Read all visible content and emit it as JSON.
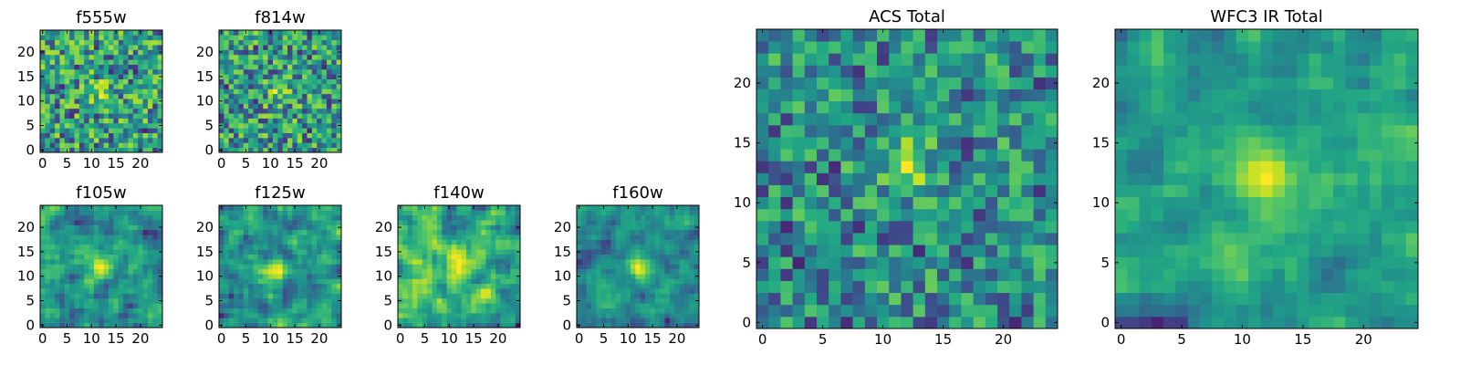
{
  "chart_data": [
    {
      "type": "heatmap",
      "title": "f555w",
      "grid": false,
      "xlim": [
        -0.5,
        24.5
      ],
      "ylim": [
        -0.5,
        24.5
      ],
      "xticks": [
        0,
        5,
        10,
        15,
        20
      ],
      "yticks": [
        0,
        5,
        10,
        15,
        20
      ],
      "colormap": "viridis",
      "seed": 11,
      "smooth": 0,
      "peak": [
        12,
        12
      ],
      "peak_strength": 0.35
    },
    {
      "type": "heatmap",
      "title": "f814w",
      "grid": false,
      "xlim": [
        -0.5,
        24.5
      ],
      "ylim": [
        -0.5,
        24.5
      ],
      "xticks": [
        0,
        5,
        10,
        15,
        20
      ],
      "yticks": [
        0,
        5,
        10,
        15,
        20
      ],
      "colormap": "viridis",
      "seed": 23,
      "smooth": 0,
      "peak": [
        12,
        12
      ],
      "peak_strength": 0.4
    },
    {
      "type": "heatmap",
      "title": "f105w",
      "grid": false,
      "xlim": [
        -0.5,
        24.5
      ],
      "ylim": [
        -0.5,
        24.5
      ],
      "xticks": [
        0,
        5,
        10,
        15,
        20
      ],
      "yticks": [
        0,
        5,
        10,
        15,
        20
      ],
      "colormap": "viridis",
      "seed": 37,
      "smooth": 1,
      "peak": [
        12,
        12
      ],
      "peak_strength": 0.45
    },
    {
      "type": "heatmap",
      "title": "f125w",
      "grid": false,
      "xlim": [
        -0.5,
        24.5
      ],
      "ylim": [
        -0.5,
        24.5
      ],
      "xticks": [
        0,
        5,
        10,
        15,
        20
      ],
      "yticks": [
        0,
        5,
        10,
        15,
        20
      ],
      "colormap": "viridis",
      "seed": 41,
      "smooth": 1,
      "peak": [
        11,
        11
      ],
      "peak_strength": 0.4
    },
    {
      "type": "heatmap",
      "title": "f140w",
      "grid": false,
      "xlim": [
        -0.5,
        24.5
      ],
      "ylim": [
        -0.5,
        24.5
      ],
      "xticks": [
        0,
        5,
        10,
        15,
        20
      ],
      "yticks": [
        0,
        5,
        10,
        15,
        20
      ],
      "colormap": "viridis",
      "seed": 53,
      "smooth": 1,
      "peak": [
        12,
        12
      ],
      "peak_strength": 0.35
    },
    {
      "type": "heatmap",
      "title": "f160w",
      "grid": false,
      "xlim": [
        -0.5,
        24.5
      ],
      "ylim": [
        -0.5,
        24.5
      ],
      "xticks": [
        0,
        5,
        10,
        15,
        20
      ],
      "yticks": [
        0,
        5,
        10,
        15,
        20
      ],
      "colormap": "viridis",
      "seed": 67,
      "smooth": 1,
      "peak": [
        12,
        12
      ],
      "peak_strength": 0.5
    },
    {
      "type": "heatmap",
      "title": "ACS Total",
      "grid": false,
      "xlim": [
        -0.5,
        24.5
      ],
      "ylim": [
        -0.5,
        24.5
      ],
      "xticks": [
        0,
        5,
        10,
        15,
        20
      ],
      "yticks": [
        0,
        5,
        10,
        15,
        20
      ],
      "colormap": "viridis",
      "seed": 79,
      "smooth": 0,
      "peak": [
        12,
        13
      ],
      "peak_strength": 0.55
    },
    {
      "type": "heatmap",
      "title": "WFC3 IR Total",
      "grid": false,
      "xlim": [
        -0.5,
        24.5
      ],
      "ylim": [
        -0.5,
        24.5
      ],
      "xticks": [
        0,
        5,
        10,
        15,
        20
      ],
      "yticks": [
        0,
        5,
        10,
        15,
        20
      ],
      "colormap": "viridis",
      "seed": 97,
      "smooth": 1,
      "peak": [
        12,
        12
      ],
      "peak_strength": 0.6
    }
  ]
}
